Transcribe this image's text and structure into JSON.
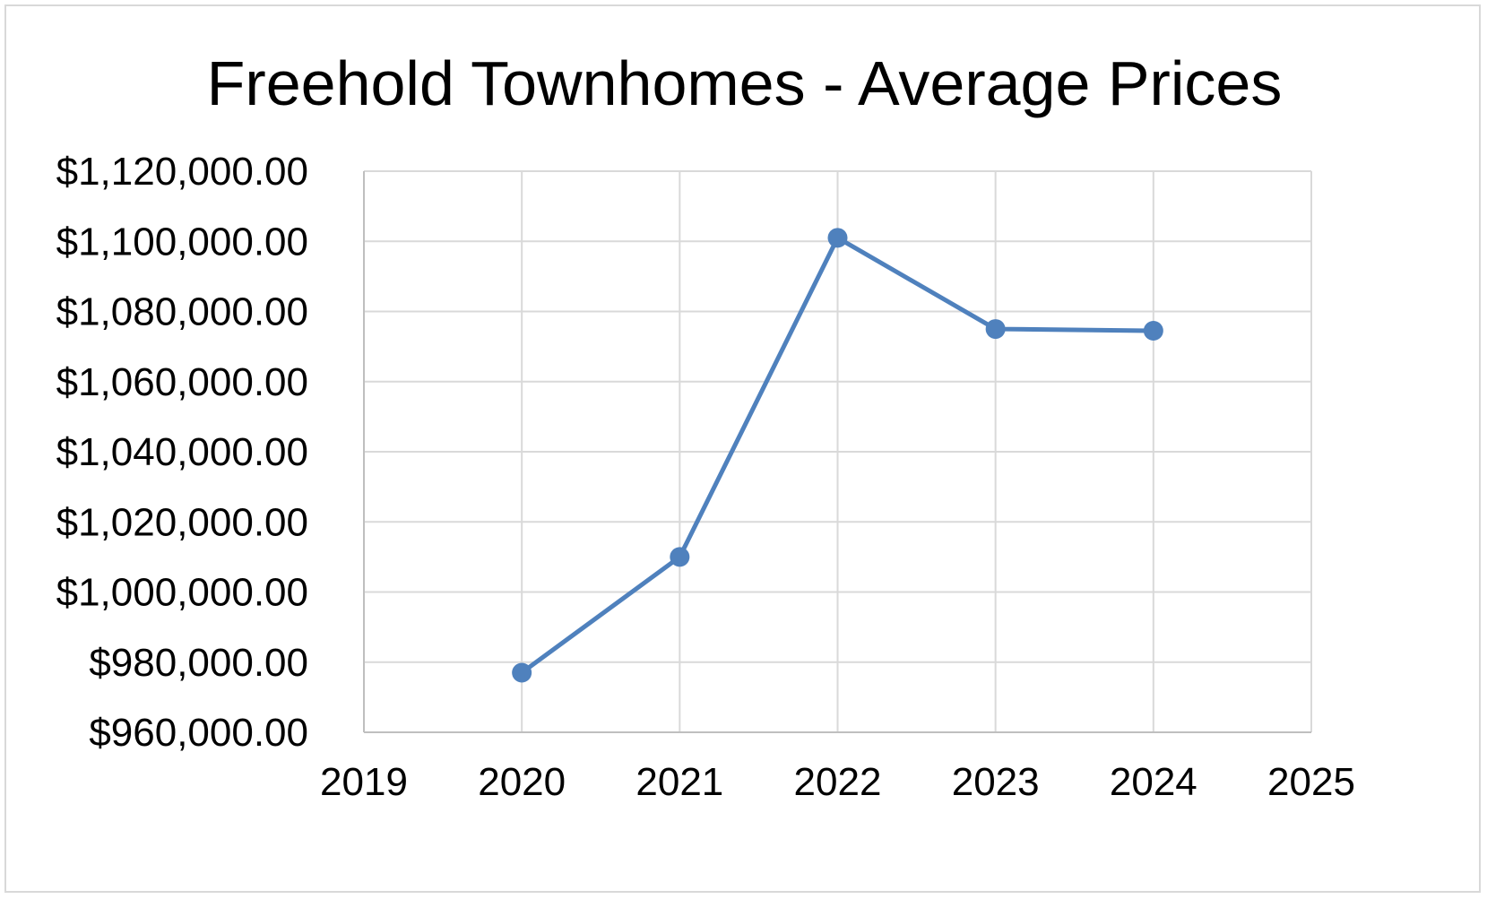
{
  "chart_data": {
    "type": "scatter",
    "title": "Freehold Townhomes - Average Prices",
    "xlabel": "",
    "ylabel": "",
    "x": [
      2020,
      2021,
      2022,
      2023,
      2024
    ],
    "series": [
      {
        "values": [
          977000,
          1010000,
          1101000,
          1075000,
          1074500
        ]
      }
    ],
    "xlim": [
      2019,
      2025
    ],
    "ylim": [
      960000,
      1120000
    ],
    "x_ticks": [
      2019,
      2020,
      2021,
      2022,
      2023,
      2024,
      2025
    ],
    "x_tick_labels": [
      "2019",
      "2020",
      "2021",
      "2022",
      "2023",
      "2024",
      "2025"
    ],
    "y_ticks": [
      960000,
      980000,
      1000000,
      1020000,
      1040000,
      1060000,
      1080000,
      1100000,
      1120000
    ],
    "y_tick_labels": [
      "$960,000.00",
      "$980,000.00",
      "$1,000,000.00",
      "$1,020,000.00",
      "$1,040,000.00",
      "$1,060,000.00",
      "$1,080,000.00",
      "$1,100,000.00",
      "$1,120,000.00"
    ],
    "grid": true,
    "legend": "none",
    "style": "scatter with straight lines and markers",
    "colors": {
      "series": "#4f81bd",
      "grid": "#d9d9d9",
      "axis": "#bfbfbf",
      "text": "#000000"
    }
  }
}
